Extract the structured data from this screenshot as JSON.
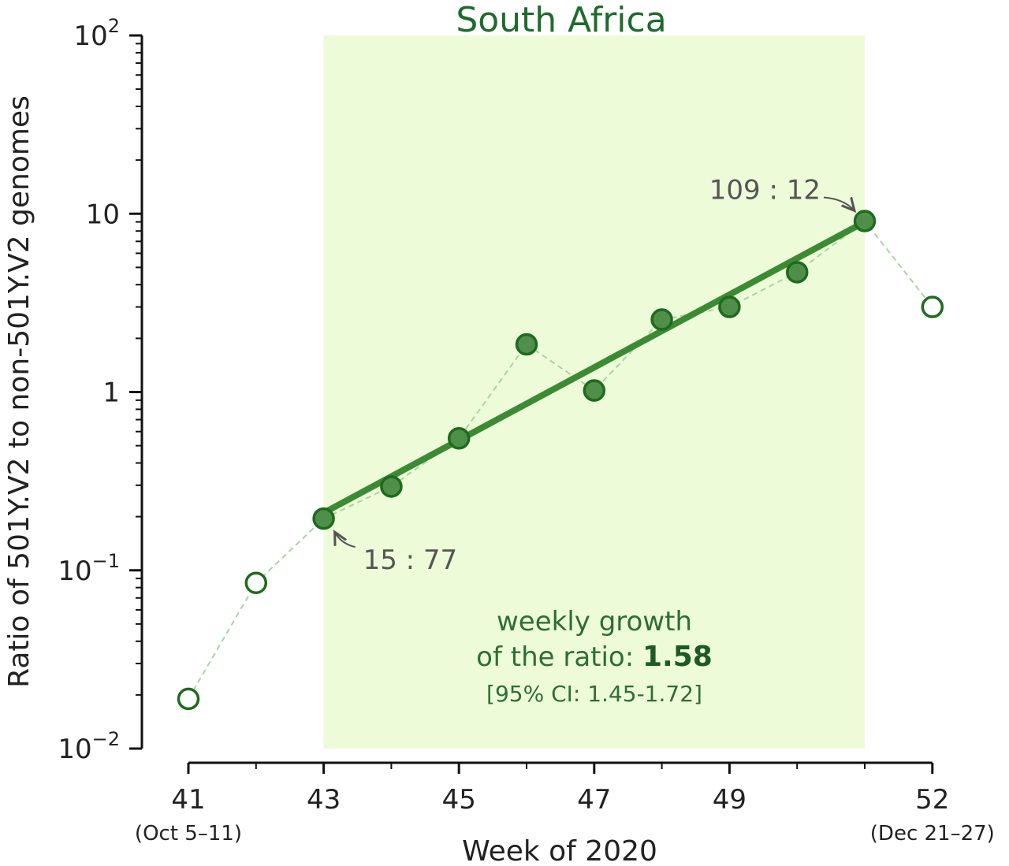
{
  "chart_data": {
    "type": "scatter",
    "title": "South Africa",
    "xlabel": "Week of 2020",
    "ylabel": "Ratio of 501Y.V2 to non-501Y.V2 genomes",
    "y_scale": "log",
    "ylim": [
      0.01,
      100
    ],
    "xlim": [
      41,
      52
    ],
    "x_ticks": [
      {
        "value": 41,
        "label": "41",
        "sublabel": "(Oct 5–11)"
      },
      {
        "value": 43,
        "label": "43",
        "sublabel": ""
      },
      {
        "value": 45,
        "label": "45",
        "sublabel": ""
      },
      {
        "value": 47,
        "label": "47",
        "sublabel": ""
      },
      {
        "value": 49,
        "label": "49",
        "sublabel": ""
      },
      {
        "value": 52,
        "label": "52",
        "sublabel": "(Dec 21–27)"
      }
    ],
    "y_ticks": [
      {
        "value": 0.01,
        "base": "10",
        "exp": "−2"
      },
      {
        "value": 0.1,
        "base": "10",
        "exp": "−1"
      },
      {
        "value": 1,
        "base": "1",
        "exp": ""
      },
      {
        "value": 10,
        "base": "10",
        "exp": ""
      },
      {
        "value": 100,
        "base": "10",
        "exp": "2"
      }
    ],
    "shaded_region": {
      "x_start": 43,
      "x_end": 51,
      "color": "#edfbd8"
    },
    "points": [
      {
        "x": 41,
        "y": 0.019,
        "filled": false
      },
      {
        "x": 42,
        "y": 0.085,
        "filled": false
      },
      {
        "x": 43,
        "y": 0.195,
        "filled": true
      },
      {
        "x": 44,
        "y": 0.295,
        "filled": true
      },
      {
        "x": 45,
        "y": 0.55,
        "filled": true
      },
      {
        "x": 46,
        "y": 1.85,
        "filled": true
      },
      {
        "x": 47,
        "y": 1.02,
        "filled": true
      },
      {
        "x": 48,
        "y": 2.55,
        "filled": true
      },
      {
        "x": 49,
        "y": 3.0,
        "filled": true
      },
      {
        "x": 50,
        "y": 4.7,
        "filled": true
      },
      {
        "x": 51,
        "y": 9.1,
        "filled": true
      },
      {
        "x": 52,
        "y": 3.0,
        "filled": false
      }
    ],
    "fit_line": {
      "x": [
        43,
        51
      ],
      "y": [
        0.21,
        9.0
      ]
    },
    "annotations": [
      {
        "text": "15 : 77",
        "point_x": 43
      },
      {
        "text": "109 : 12",
        "point_x": 51
      }
    ],
    "growth_note": {
      "line1": "weekly growth",
      "line2_prefix": "of the ratio: ",
      "value": "1.58",
      "ci": "[95% CI: 1.45-1.72]"
    },
    "colors": {
      "marker_fill": "#4f8f4a",
      "marker_edge": "#1e6b1e",
      "fit_line": "#3d8a35",
      "dashed_line": "#a9d3a4",
      "title": "#1e6b2c"
    }
  }
}
